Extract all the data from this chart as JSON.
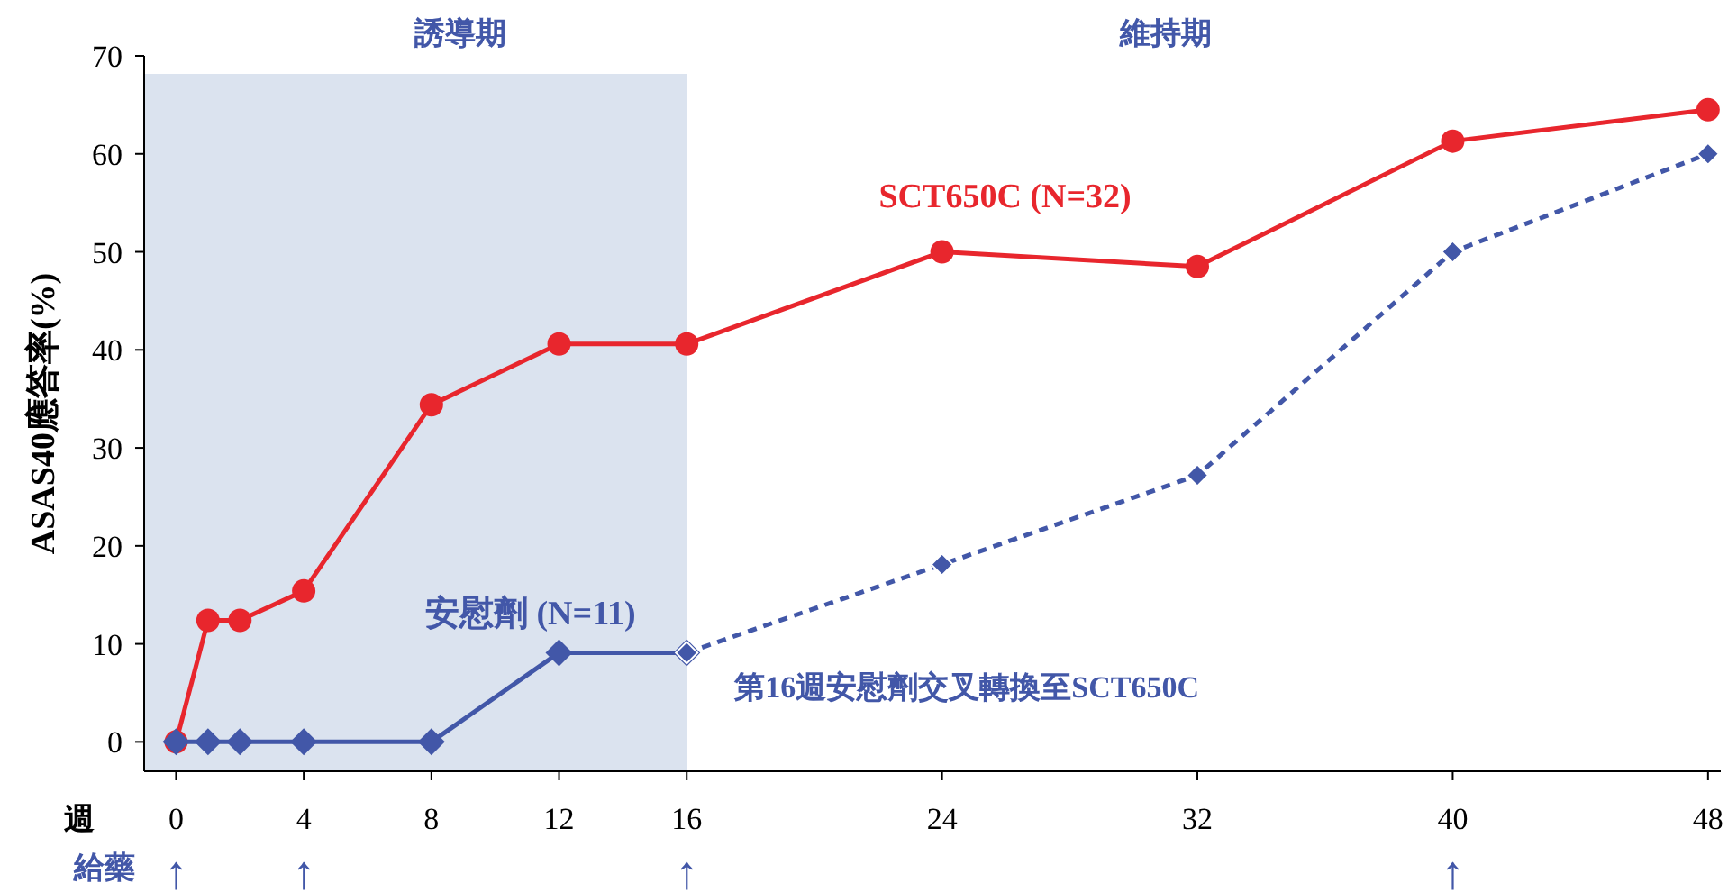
{
  "chart_data": {
    "type": "line",
    "ylabel": "ASAS40應答率(%)",
    "xlabel": "週",
    "xlim": [
      -1,
      48.4
    ],
    "ylim": [
      -3,
      70
    ],
    "xticks": [
      0,
      4,
      8,
      12,
      16,
      24,
      32,
      40,
      48
    ],
    "yticks": [
      0,
      10,
      20,
      30,
      40,
      50,
      60,
      70
    ],
    "series": [
      {
        "name": "SCT650C (N=32)",
        "color": "#e8262d",
        "marker": "circle",
        "line_style": "solid",
        "x": [
          0,
          1,
          2,
          4,
          8,
          12,
          16,
          24,
          32,
          40,
          48
        ],
        "values": [
          0,
          12.4,
          12.4,
          15.4,
          34.4,
          40.6,
          40.6,
          50,
          48.5,
          61.3,
          64.5
        ]
      },
      {
        "name": "安慰劑 (N=11)",
        "color": "#4257a8",
        "marker": "diamond",
        "line_style": "solid",
        "x": [
          0,
          1,
          2,
          4,
          8,
          12,
          16
        ],
        "values": [
          0,
          0,
          0,
          0,
          0,
          9.1,
          9.1
        ]
      },
      {
        "color": "#4257a8",
        "marker": "diamond",
        "line_style": "dashed",
        "x": [
          16,
          24,
          32,
          40,
          48
        ],
        "values": [
          9.1,
          18.1,
          27.2,
          50,
          60
        ]
      }
    ],
    "bands": [
      {
        "axis": "x",
        "from": -1,
        "to": 16,
        "color": "#dbe3ef",
        "label": "誘導期"
      }
    ],
    "annotations": [
      "維持期",
      "第16週安慰劑交叉轉換至SCT650C",
      "給藥",
      "↑",
      "↑",
      "↑",
      "↑"
    ]
  }
}
